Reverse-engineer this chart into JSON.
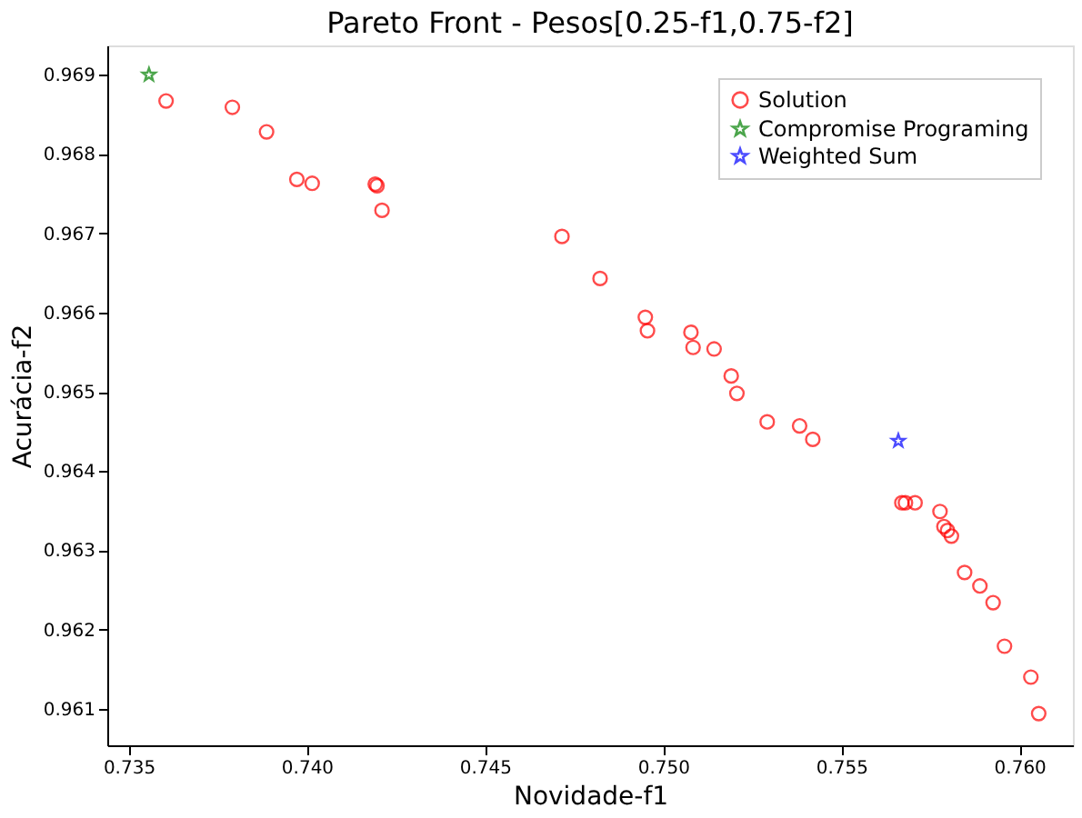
{
  "chart_data": {
    "type": "scatter",
    "title": "Pareto Front - Pesos[0.25-f1,0.75-f2]",
    "xlabel": "Novidade-f1",
    "ylabel": "Acurácia-f2",
    "xlim": [
      0.7344,
      0.7615
    ],
    "xticks": [
      {
        "value": 0.735,
        "label": "0.735"
      },
      {
        "value": 0.74,
        "label": "0.740"
      },
      {
        "value": 0.745,
        "label": "0.745"
      },
      {
        "value": 0.75,
        "label": "0.750"
      },
      {
        "value": 0.755,
        "label": "0.755"
      },
      {
        "value": 0.76,
        "label": "0.760"
      }
    ],
    "ylim": [
      0.96054,
      0.96937
    ],
    "yticks": [
      0.961,
      0.962,
      0.963,
      0.964,
      0.965,
      0.966,
      0.967,
      0.968,
      0.969
    ],
    "grid": false,
    "legend": "top right",
    "series": [
      {
        "name": "Solution",
        "color": "#ff0000",
        "marker": "circle",
        "x": [
          0.73605,
          0.73791,
          0.73887,
          0.73972,
          0.74015,
          0.74192,
          0.74197,
          0.74211,
          0.74716,
          0.74823,
          0.7495,
          0.74956,
          0.75078,
          0.75084,
          0.75143,
          0.75191,
          0.75207,
          0.75292,
          0.75383,
          0.7542,
          0.7567,
          0.7568,
          0.75707,
          0.75777,
          0.75788,
          0.75798,
          0.75809,
          0.75846,
          0.75889,
          0.75926,
          0.75958,
          0.76032,
          0.76054
        ],
        "values": [
          0.96867,
          0.96859,
          0.96828,
          0.96768,
          0.96763,
          0.96762,
          0.9676,
          0.96729,
          0.96696,
          0.96643,
          0.96594,
          0.96577,
          0.96575,
          0.96556,
          0.96554,
          0.9652,
          0.96498,
          0.96462,
          0.96457,
          0.9644,
          0.9636,
          0.9636,
          0.9636,
          0.96349,
          0.9633,
          0.96325,
          0.96318,
          0.96272,
          0.96255,
          0.96234,
          0.96179,
          0.9614,
          0.96094
        ]
      },
      {
        "name": "Compromise Programing",
        "color": "#008000",
        "marker": "star",
        "x": [
          0.73557
        ],
        "values": [
          0.969
        ]
      },
      {
        "name": "Weighted Sum",
        "color": "#0000ff",
        "marker": "star",
        "x": [
          0.7566
        ],
        "values": [
          0.96438
        ]
      }
    ]
  }
}
